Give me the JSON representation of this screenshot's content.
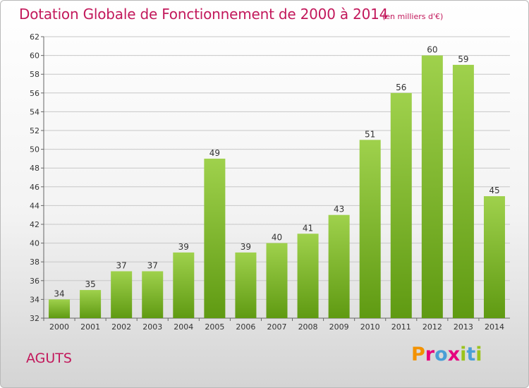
{
  "header": {
    "title": "Dotation Globale de Fonctionnement de 2000 à 2014",
    "unit": "(en milliers d'€)"
  },
  "footer": {
    "commune": "AGUTS",
    "logo": [
      "P",
      "r",
      "o",
      "x",
      "i",
      "t",
      "i"
    ]
  },
  "colors": {
    "accent": "#c2185b",
    "bar_top": "#9fd14c",
    "bar_bottom": "#5f9a12",
    "logo_letters": [
      "#f39200",
      "#e6007e",
      "#4a9fd6",
      "#e6007e",
      "#9bc31c",
      "#4a9fd6",
      "#9bc31c"
    ]
  },
  "chart_data": {
    "type": "bar",
    "title": "Dotation Globale de Fonctionnement de 2000 à 2014",
    "subtitle": "(en milliers d'€)",
    "categories": [
      "2000",
      "2001",
      "2002",
      "2003",
      "2004",
      "2005",
      "2006",
      "2007",
      "2008",
      "2009",
      "2010",
      "2011",
      "2012",
      "2013",
      "2014"
    ],
    "values": [
      34,
      35,
      37,
      37,
      39,
      49,
      39,
      40,
      41,
      43,
      51,
      56,
      60,
      59,
      45
    ],
    "ylim": [
      32,
      62
    ],
    "yticks": [
      32,
      34,
      36,
      38,
      40,
      42,
      44,
      46,
      48,
      50,
      52,
      54,
      56,
      58,
      60,
      62
    ],
    "grid": true,
    "data_labels": true
  }
}
